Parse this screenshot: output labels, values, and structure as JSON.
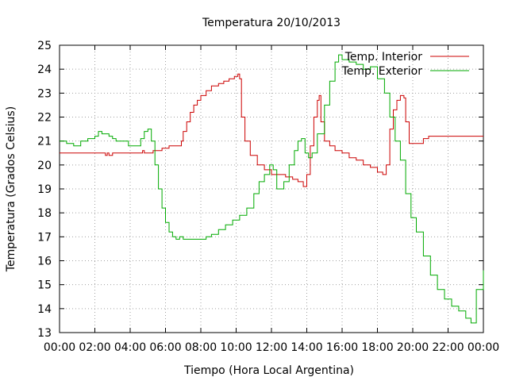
{
  "chart_data": {
    "type": "line",
    "title": "Temperatura 20/10/2013",
    "xlabel": "Tiempo (Hora Local Argentina)",
    "ylabel": "Temperatura (Grados Celsius)",
    "xlim": [
      0,
      24
    ],
    "ylim": [
      13,
      25
    ],
    "x_ticks": [
      {
        "value": 0,
        "label": "00:00"
      },
      {
        "value": 2,
        "label": "02:00"
      },
      {
        "value": 4,
        "label": "04:00"
      },
      {
        "value": 6,
        "label": "06:00"
      },
      {
        "value": 8,
        "label": "08:00"
      },
      {
        "value": 10,
        "label": "10:00"
      },
      {
        "value": 12,
        "label": "12:00"
      },
      {
        "value": 14,
        "label": "14:00"
      },
      {
        "value": 16,
        "label": "16:00"
      },
      {
        "value": 18,
        "label": "18:00"
      },
      {
        "value": 20,
        "label": "20:00"
      },
      {
        "value": 22,
        "label": "22:00"
      },
      {
        "value": 24,
        "label": "00:00"
      }
    ],
    "y_ticks": [
      13,
      14,
      15,
      16,
      17,
      18,
      19,
      20,
      21,
      22,
      23,
      24,
      25
    ],
    "grid": true,
    "legend_position": "top-right",
    "series": [
      {
        "name": "Temp. Interior",
        "color": "#cc0000",
        "x": [
          0,
          2.5,
          2.6,
          2.7,
          2.8,
          3.0,
          4.6,
          4.7,
          4.8,
          5.0,
          5.3,
          5.5,
          5.8,
          6.0,
          6.2,
          6.8,
          6.9,
          7.0,
          7.2,
          7.4,
          7.6,
          7.8,
          8.0,
          8.3,
          8.6,
          9.0,
          9.3,
          9.6,
          9.9,
          10.1,
          10.2,
          10.3,
          10.5,
          10.8,
          11.2,
          11.6,
          12.0,
          12.4,
          12.8,
          13.2,
          13.5,
          13.8,
          14.0,
          14.2,
          14.4,
          14.6,
          14.7,
          14.8,
          15.0,
          15.3,
          15.6,
          16.0,
          16.4,
          16.8,
          17.2,
          17.6,
          18.0,
          18.3,
          18.5,
          18.7,
          18.9,
          19.1,
          19.3,
          19.5,
          19.6,
          19.8,
          20.0,
          20.3,
          20.6,
          20.9,
          21.5,
          22.0,
          23.0,
          24.0
        ],
        "values": [
          20.5,
          20.5,
          20.4,
          20.5,
          20.4,
          20.5,
          20.5,
          20.6,
          20.5,
          20.5,
          20.6,
          20.6,
          20.7,
          20.7,
          20.8,
          20.8,
          21.0,
          21.4,
          21.8,
          22.2,
          22.5,
          22.7,
          22.9,
          23.1,
          23.3,
          23.4,
          23.5,
          23.6,
          23.7,
          23.8,
          23.6,
          22.0,
          21.0,
          20.4,
          20.0,
          19.8,
          19.6,
          19.6,
          19.5,
          19.4,
          19.3,
          19.1,
          19.6,
          20.8,
          22.0,
          22.7,
          22.9,
          21.8,
          21.0,
          20.8,
          20.6,
          20.5,
          20.3,
          20.2,
          20.0,
          19.9,
          19.7,
          19.6,
          20.0,
          21.5,
          22.3,
          22.7,
          22.9,
          22.8,
          21.8,
          20.9,
          20.9,
          20.9,
          21.1,
          21.2,
          21.2,
          21.2,
          21.2,
          21.2
        ]
      },
      {
        "name": "Temp. Exterior",
        "color": "#00aa00",
        "x": [
          0,
          0.4,
          0.8,
          1.2,
          1.6,
          2.0,
          2.2,
          2.4,
          2.8,
          3.0,
          3.2,
          3.6,
          3.9,
          4.2,
          4.6,
          4.8,
          5.0,
          5.2,
          5.4,
          5.6,
          5.8,
          6.0,
          6.2,
          6.4,
          6.6,
          6.8,
          7.0,
          7.2,
          7.5,
          8.0,
          8.3,
          8.6,
          9.0,
          9.4,
          9.8,
          10.2,
          10.6,
          11.0,
          11.3,
          11.6,
          11.9,
          12.1,
          12.3,
          12.5,
          12.7,
          13.0,
          13.3,
          13.5,
          13.7,
          13.9,
          14.1,
          14.3,
          14.6,
          15.0,
          15.3,
          15.6,
          15.8,
          16.0,
          16.4,
          16.8,
          17.2,
          17.6,
          18.0,
          18.4,
          18.7,
          19.0,
          19.3,
          19.6,
          19.9,
          20.2,
          20.6,
          21.0,
          21.4,
          21.8,
          22.2,
          22.6,
          23.0,
          23.3,
          23.6,
          24.0
        ],
        "values": [
          21.0,
          20.9,
          20.8,
          21.0,
          21.1,
          21.2,
          21.4,
          21.3,
          21.2,
          21.1,
          21.0,
          21.0,
          20.8,
          20.8,
          21.1,
          21.4,
          21.5,
          21.0,
          20.0,
          19.0,
          18.2,
          17.6,
          17.2,
          17.0,
          16.9,
          17.0,
          16.9,
          16.9,
          16.9,
          16.9,
          17.0,
          17.1,
          17.3,
          17.5,
          17.7,
          17.9,
          18.2,
          18.8,
          19.3,
          19.6,
          20.0,
          19.8,
          19.0,
          19.0,
          19.3,
          20.0,
          20.6,
          21.0,
          21.1,
          20.5,
          20.3,
          20.5,
          21.3,
          22.5,
          23.5,
          24.3,
          24.6,
          24.4,
          24.3,
          24.2,
          24.0,
          24.1,
          23.6,
          23.0,
          22.0,
          21.0,
          20.2,
          18.8,
          17.8,
          17.2,
          16.2,
          15.4,
          14.8,
          14.4,
          14.1,
          13.9,
          13.6,
          13.4,
          14.8,
          15.6
        ]
      }
    ]
  }
}
